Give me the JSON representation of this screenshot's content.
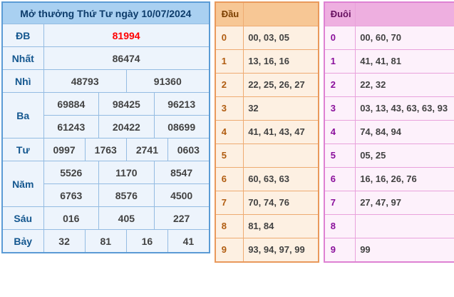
{
  "colors": {
    "result_accent": "#5b9bd5",
    "result_header_bg": "#a9d0f1",
    "dau_accent": "#e9995c",
    "dau_header_bg": "#f7c795",
    "duoi_accent": "#de82d3",
    "duoi_header_bg": "#eeafe0",
    "special_prize_color": "#ff0000"
  },
  "result_table": {
    "title": "Mở thưởng Thứ Tư ngày 10/07/2024",
    "rows": [
      {
        "label": "ĐB",
        "highlight": true,
        "lines": [
          [
            "81994"
          ]
        ]
      },
      {
        "label": "Nhất",
        "highlight": false,
        "lines": [
          [
            "86474"
          ]
        ]
      },
      {
        "label": "Nhì",
        "highlight": false,
        "lines": [
          [
            "48793",
            "91360"
          ]
        ]
      },
      {
        "label": "Ba",
        "highlight": false,
        "lines": [
          [
            "69884",
            "98425",
            "96213"
          ],
          [
            "61243",
            "20422",
            "08699"
          ]
        ]
      },
      {
        "label": "Tư",
        "highlight": false,
        "lines": [
          [
            "0997",
            "1763",
            "2741",
            "0603"
          ]
        ]
      },
      {
        "label": "Năm",
        "highlight": false,
        "lines": [
          [
            "5526",
            "1170",
            "8547"
          ],
          [
            "6763",
            "8576",
            "4500"
          ]
        ]
      },
      {
        "label": "Sáu",
        "highlight": false,
        "lines": [
          [
            "016",
            "405",
            "227"
          ]
        ]
      },
      {
        "label": "Bảy",
        "highlight": false,
        "lines": [
          [
            "32",
            "81",
            "16",
            "41"
          ]
        ]
      }
    ]
  },
  "dau_table": {
    "header": "Đầu",
    "rows": [
      {
        "digit": "0",
        "numbers": "00, 03, 05"
      },
      {
        "digit": "1",
        "numbers": "13, 16, 16"
      },
      {
        "digit": "2",
        "numbers": "22, 25, 26, 27"
      },
      {
        "digit": "3",
        "numbers": "32"
      },
      {
        "digit": "4",
        "numbers": "41, 41, 43, 47"
      },
      {
        "digit": "5",
        "numbers": ""
      },
      {
        "digit": "6",
        "numbers": "60, 63, 63"
      },
      {
        "digit": "7",
        "numbers": "70, 74, 76"
      },
      {
        "digit": "8",
        "numbers": "81, 84"
      },
      {
        "digit": "9",
        "numbers": "93, 94, 97, 99"
      }
    ]
  },
  "duoi_table": {
    "header": "Đuôi",
    "rows": [
      {
        "digit": "0",
        "numbers": "00, 60, 70"
      },
      {
        "digit": "1",
        "numbers": "41, 41, 81"
      },
      {
        "digit": "2",
        "numbers": "22, 32"
      },
      {
        "digit": "3",
        "numbers": "03, 13, 43, 63, 63, 93"
      },
      {
        "digit": "4",
        "numbers": "74, 84, 94"
      },
      {
        "digit": "5",
        "numbers": "05, 25"
      },
      {
        "digit": "6",
        "numbers": "16, 16, 26, 76"
      },
      {
        "digit": "7",
        "numbers": "27, 47, 97"
      },
      {
        "digit": "8",
        "numbers": ""
      },
      {
        "digit": "9",
        "numbers": "99"
      }
    ]
  }
}
